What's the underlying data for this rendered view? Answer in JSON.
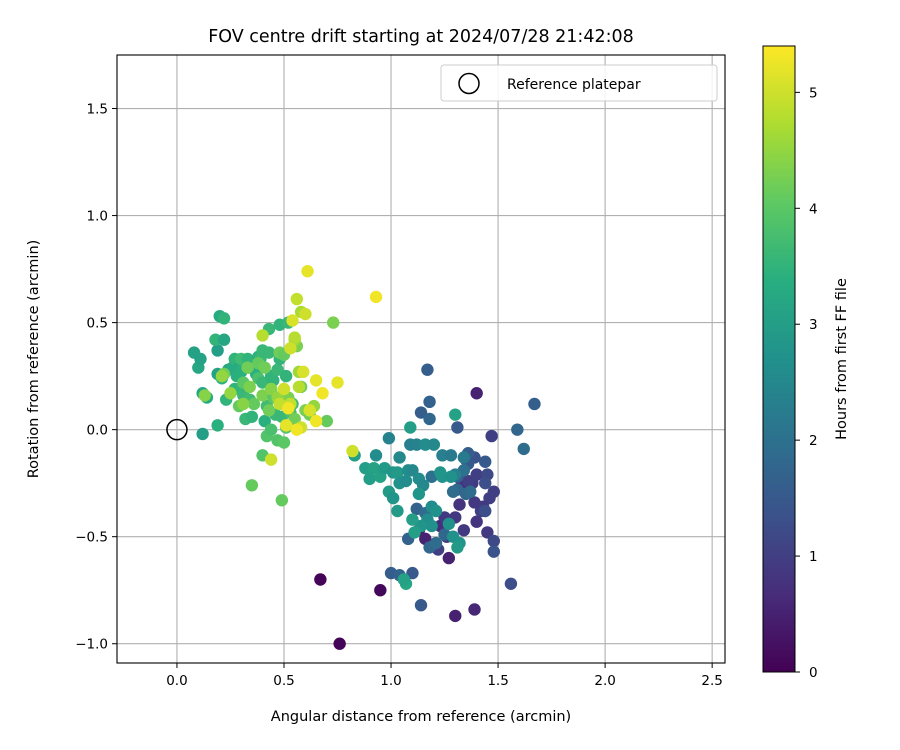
{
  "chart_data": {
    "type": "scatter",
    "title": "FOV centre drift starting at 2024/07/28 21:42:08",
    "xlabel": "Angular distance from reference (arcmin)",
    "ylabel": "Rotation from reference (arcmin)",
    "xlim": [
      -0.28,
      2.56
    ],
    "ylim": [
      -1.09,
      1.75
    ],
    "xticks": [
      0.0,
      0.5,
      1.0,
      1.5,
      2.0,
      2.5
    ],
    "xtick_labels": [
      "0.0",
      "0.5",
      "1.0",
      "1.5",
      "2.0",
      "2.5"
    ],
    "yticks": [
      -1.0,
      -0.5,
      0.0,
      0.5,
      1.0,
      1.5
    ],
    "ytick_labels": [
      "−1.0",
      "−0.5",
      "0.0",
      "0.5",
      "1.0",
      "1.5"
    ],
    "grid": true,
    "legend": {
      "placement": "top-right",
      "entries": [
        "Reference platepar"
      ]
    },
    "colorbar": {
      "label": "Hours from first FF file",
      "range": [
        0,
        5.4
      ],
      "ticks": [
        0,
        1,
        2,
        3,
        4,
        5
      ],
      "tick_labels": [
        "0",
        "1",
        "2",
        "3",
        "4",
        "5"
      ],
      "colormap": "viridis"
    },
    "reference_point": {
      "x": 0.0,
      "y": 0.0
    },
    "series": [
      {
        "points": [
          [
            0.67,
            -0.7,
            0.05
          ],
          [
            0.76,
            -1.0,
            0.05
          ],
          [
            0.95,
            -0.75,
            0.1
          ],
          [
            1.4,
            0.17,
            0.5
          ],
          [
            1.3,
            -0.87,
            0.5
          ],
          [
            1.39,
            -0.84,
            0.6
          ],
          [
            1.13,
            -0.47,
            0.4
          ],
          [
            1.16,
            -0.51,
            0.5
          ],
          [
            1.23,
            -0.45,
            0.7
          ],
          [
            1.27,
            -0.6,
            0.5
          ],
          [
            1.32,
            -0.35,
            0.8
          ],
          [
            1.33,
            -0.26,
            0.7
          ],
          [
            1.35,
            -0.14,
            0.8
          ],
          [
            1.38,
            -0.25,
            0.9
          ],
          [
            1.4,
            -0.43,
            0.8
          ],
          [
            1.45,
            -0.48,
            0.9
          ],
          [
            1.47,
            -0.03,
            1.0
          ],
          [
            1.46,
            -0.32,
            1.0
          ],
          [
            1.48,
            -0.29,
            1.0
          ],
          [
            1.43,
            -0.36,
            0.9
          ],
          [
            1.42,
            -0.38,
            1.0
          ],
          [
            1.34,
            -0.47,
            0.9
          ],
          [
            1.3,
            -0.41,
            0.9
          ],
          [
            1.26,
            -0.5,
            0.9
          ],
          [
            1.22,
            -0.56,
            1.0
          ],
          [
            1.25,
            -0.41,
            0.9
          ],
          [
            1.39,
            -0.34,
            0.9
          ],
          [
            1.36,
            -0.24,
            1.0
          ],
          [
            1.4,
            -0.21,
            1.0
          ],
          [
            1.1,
            -0.67,
            1.5
          ],
          [
            1.0,
            -0.67,
            1.6
          ],
          [
            1.04,
            -0.68,
            1.7
          ],
          [
            1.14,
            -0.82,
            1.5
          ],
          [
            1.48,
            -0.52,
            1.2
          ],
          [
            1.56,
            -0.72,
            1.3
          ],
          [
            1.48,
            -0.57,
            1.4
          ],
          [
            1.44,
            -0.38,
            1.3
          ],
          [
            1.45,
            -0.21,
            1.2
          ],
          [
            1.44,
            -0.25,
            1.3
          ],
          [
            1.44,
            -0.15,
            1.5
          ],
          [
            1.39,
            -0.13,
            1.4
          ],
          [
            1.36,
            -0.16,
            1.5
          ],
          [
            1.36,
            -0.11,
            1.6
          ],
          [
            1.31,
            0.01,
            1.5
          ],
          [
            1.17,
            0.28,
            1.6
          ],
          [
            1.18,
            0.13,
            1.7
          ],
          [
            1.14,
            0.08,
            1.6
          ],
          [
            1.18,
            0.05,
            1.8
          ],
          [
            1.31,
            -0.28,
            1.8
          ],
          [
            1.29,
            -0.29,
            1.9
          ],
          [
            1.31,
            -0.22,
            1.7
          ],
          [
            1.35,
            -0.3,
            1.8
          ],
          [
            1.37,
            -0.29,
            1.9
          ],
          [
            1.67,
            0.12,
            1.6
          ],
          [
            1.59,
            0.0,
            1.8
          ],
          [
            1.62,
            -0.09,
            1.9
          ],
          [
            1.08,
            -0.51,
            1.7
          ],
          [
            1.18,
            -0.55,
            1.8
          ],
          [
            1.12,
            -0.37,
            1.7
          ],
          [
            1.21,
            -0.53,
            1.9
          ],
          [
            1.25,
            -0.49,
            1.8
          ],
          [
            1.16,
            -0.39,
            1.9
          ],
          [
            1.34,
            -0.19,
            2.0
          ],
          [
            1.19,
            -0.22,
            2.0
          ],
          [
            0.93,
            -0.12,
            2.6
          ],
          [
            0.99,
            -0.04,
            2.4
          ],
          [
            1.04,
            -0.13,
            2.5
          ],
          [
            1.09,
            -0.07,
            2.3
          ],
          [
            1.12,
            -0.07,
            2.4
          ],
          [
            1.16,
            -0.07,
            2.6
          ],
          [
            1.2,
            -0.07,
            2.5
          ],
          [
            1.24,
            -0.12,
            2.3
          ],
          [
            1.28,
            -0.12,
            2.2
          ],
          [
            1.3,
            -0.21,
            2.3
          ],
          [
            1.34,
            -0.13,
            2.2
          ],
          [
            0.83,
            -0.12,
            3.0
          ],
          [
            0.88,
            -0.18,
            3.0
          ],
          [
            0.92,
            -0.18,
            3.1
          ],
          [
            0.9,
            -0.23,
            3.0
          ],
          [
            0.95,
            -0.22,
            3.1
          ],
          [
            0.97,
            -0.18,
            2.9
          ],
          [
            1.01,
            -0.2,
            2.8
          ],
          [
            1.03,
            -0.2,
            2.9
          ],
          [
            0.99,
            -0.29,
            2.9
          ],
          [
            1.01,
            -0.32,
            2.8
          ],
          [
            1.04,
            -0.25,
            2.7
          ],
          [
            1.07,
            -0.24,
            2.6
          ],
          [
            1.08,
            -0.19,
            2.6
          ],
          [
            1.1,
            -0.19,
            2.5
          ],
          [
            1.13,
            -0.23,
            2.6
          ],
          [
            1.15,
            -0.26,
            2.5
          ],
          [
            1.13,
            -0.3,
            2.8
          ],
          [
            1.19,
            -0.36,
            2.6
          ],
          [
            1.17,
            -0.42,
            2.6
          ],
          [
            1.19,
            -0.45,
            2.7
          ],
          [
            1.21,
            -0.38,
            2.7
          ],
          [
            1.14,
            -0.45,
            2.8
          ],
          [
            1.24,
            -0.22,
            2.8
          ],
          [
            1.28,
            -0.22,
            2.7
          ],
          [
            1.23,
            -0.2,
            2.8
          ],
          [
            1.27,
            -0.44,
            2.7
          ],
          [
            1.29,
            -0.5,
            2.7
          ],
          [
            1.32,
            -0.53,
            2.8
          ],
          [
            1.31,
            -0.55,
            2.9
          ],
          [
            1.11,
            -0.48,
            3.0
          ],
          [
            1.03,
            -0.38,
            2.9
          ],
          [
            1.09,
            0.01,
            3.0
          ],
          [
            1.3,
            0.07,
            3.1
          ],
          [
            1.07,
            -0.72,
            3.2
          ],
          [
            1.06,
            -0.7,
            3.1
          ],
          [
            1.1,
            -0.42,
            3.0
          ],
          [
            0.08,
            0.36,
            3.1
          ],
          [
            0.1,
            0.29,
            3.2
          ],
          [
            0.11,
            0.33,
            3.1
          ],
          [
            0.12,
            -0.02,
            3.0
          ],
          [
            0.12,
            0.17,
            3.2
          ],
          [
            0.14,
            0.15,
            3.3
          ],
          [
            0.19,
            0.37,
            3.0
          ],
          [
            0.19,
            0.26,
            3.1
          ],
          [
            0.19,
            0.02,
            3.4
          ],
          [
            0.2,
            0.53,
            3.3
          ],
          [
            0.22,
            0.52,
            3.5
          ],
          [
            0.18,
            0.42,
            3.5
          ],
          [
            0.22,
            0.42,
            3.2
          ],
          [
            0.21,
            0.24,
            3.4
          ],
          [
            0.23,
            0.14,
            3.5
          ],
          [
            0.24,
            0.28,
            3.2
          ],
          [
            0.26,
            0.29,
            3.3
          ],
          [
            0.27,
            0.33,
            3.5
          ],
          [
            0.27,
            0.19,
            3.5
          ],
          [
            0.28,
            0.25,
            3.4
          ],
          [
            0.29,
            0.29,
            3.3
          ],
          [
            0.3,
            0.27,
            3.4
          ],
          [
            0.3,
            0.33,
            3.7
          ],
          [
            0.31,
            0.21,
            3.6
          ],
          [
            0.31,
            0.16,
            3.6
          ],
          [
            0.32,
            0.05,
            3.6
          ],
          [
            0.33,
            0.33,
            3.5
          ],
          [
            0.34,
            0.29,
            3.3
          ],
          [
            0.34,
            0.14,
            3.7
          ],
          [
            0.35,
            0.06,
            3.5
          ],
          [
            0.36,
            0.29,
            3.4
          ],
          [
            0.37,
            0.26,
            3.4
          ],
          [
            0.38,
            0.24,
            3.8
          ],
          [
            0.38,
            0.34,
            3.4
          ],
          [
            0.39,
            0.33,
            3.6
          ],
          [
            0.4,
            0.37,
            3.6
          ],
          [
            0.4,
            0.22,
            3.6
          ],
          [
            0.41,
            0.04,
            3.4
          ],
          [
            0.42,
            0.11,
            3.7
          ],
          [
            0.43,
            0.36,
            3.6
          ],
          [
            0.43,
            0.47,
            3.6
          ],
          [
            0.44,
            0.25,
            3.5
          ],
          [
            0.44,
            0.18,
            3.5
          ],
          [
            0.45,
            0.23,
            3.5
          ],
          [
            0.46,
            0.07,
            3.6
          ],
          [
            0.47,
            0.28,
            3.6
          ],
          [
            0.48,
            0.49,
            3.5
          ],
          [
            0.48,
            0.33,
            3.5
          ],
          [
            0.49,
            0.06,
            3.6
          ],
          [
            0.5,
            0.16,
            3.6
          ],
          [
            0.51,
            0.25,
            3.5
          ],
          [
            0.52,
            0.5,
            3.6
          ],
          [
            0.53,
            0.08,
            3.8
          ],
          [
            0.54,
            0.12,
            3.7
          ],
          [
            0.4,
            -0.12,
            3.9
          ],
          [
            0.42,
            -0.03,
            3.9
          ],
          [
            0.44,
            0.0,
            3.8
          ],
          [
            0.47,
            -0.05,
            3.9
          ],
          [
            0.5,
            -0.06,
            4.0
          ],
          [
            0.51,
            0.01,
            3.9
          ],
          [
            0.35,
            -0.26,
            4.1
          ],
          [
            0.49,
            -0.33,
            4.1
          ],
          [
            0.22,
            0.26,
            4.2
          ],
          [
            0.29,
            0.11,
            4.1
          ],
          [
            0.31,
            0.22,
            4.0
          ],
          [
            0.33,
            0.29,
            4.2
          ],
          [
            0.34,
            0.2,
            4.3
          ],
          [
            0.36,
            0.12,
            4.1
          ],
          [
            0.38,
            0.31,
            4.1
          ],
          [
            0.4,
            0.16,
            4.3
          ],
          [
            0.41,
            0.29,
            4.2
          ],
          [
            0.43,
            0.09,
            4.2
          ],
          [
            0.45,
            0.15,
            4.0
          ],
          [
            0.48,
            0.36,
            4.2
          ],
          [
            0.5,
            0.35,
            4.1
          ],
          [
            0.52,
            0.15,
            4.3
          ],
          [
            0.55,
            0.05,
            4.2
          ],
          [
            0.56,
            0.39,
            4.3
          ],
          [
            0.58,
            0.2,
            4.2
          ],
          [
            0.6,
            0.09,
            4.3
          ],
          [
            0.62,
            0.07,
            4.2
          ],
          [
            0.7,
            0.04,
            4.1
          ],
          [
            0.73,
            0.5,
            4.3
          ],
          [
            0.13,
            0.16,
            4.4
          ],
          [
            0.21,
            0.25,
            4.5
          ],
          [
            0.25,
            0.17,
            4.5
          ],
          [
            0.31,
            0.12,
            4.4
          ],
          [
            0.44,
            0.19,
            4.4
          ],
          [
            0.47,
            0.15,
            4.5
          ],
          [
            0.55,
            0.42,
            4.6
          ],
          [
            0.58,
            0.55,
            4.7
          ],
          [
            0.64,
            0.11,
            4.5
          ],
          [
            0.57,
            0.27,
            4.6
          ],
          [
            0.4,
            0.44,
            4.8
          ],
          [
            0.44,
            -0.14,
            5.0
          ],
          [
            0.48,
            0.12,
            4.9
          ],
          [
            0.5,
            0.19,
            5.0
          ],
          [
            0.53,
            0.12,
            4.9
          ],
          [
            0.53,
            0.38,
            5.0
          ],
          [
            0.55,
            0.43,
            4.8
          ],
          [
            0.56,
            0.61,
            4.9
          ],
          [
            0.57,
            0.2,
            4.8
          ],
          [
            0.58,
            0.01,
            5.0
          ],
          [
            0.59,
            0.27,
            5.1
          ],
          [
            0.6,
            0.54,
            5.0
          ],
          [
            0.61,
            0.74,
            5.2
          ],
          [
            0.62,
            0.09,
            5.1
          ],
          [
            0.54,
            0.51,
            5.1
          ],
          [
            0.56,
            0.0,
            5.3
          ],
          [
            0.51,
            0.02,
            5.2
          ],
          [
            0.65,
            0.04,
            5.3
          ],
          [
            0.65,
            0.23,
            5.2
          ],
          [
            0.68,
            0.17,
            5.3
          ],
          [
            0.75,
            0.22,
            5.2
          ],
          [
            0.82,
            -0.1,
            5.0
          ],
          [
            0.93,
            0.62,
            5.3
          ],
          [
            0.52,
            0.1,
            5.3
          ]
        ]
      }
    ]
  }
}
